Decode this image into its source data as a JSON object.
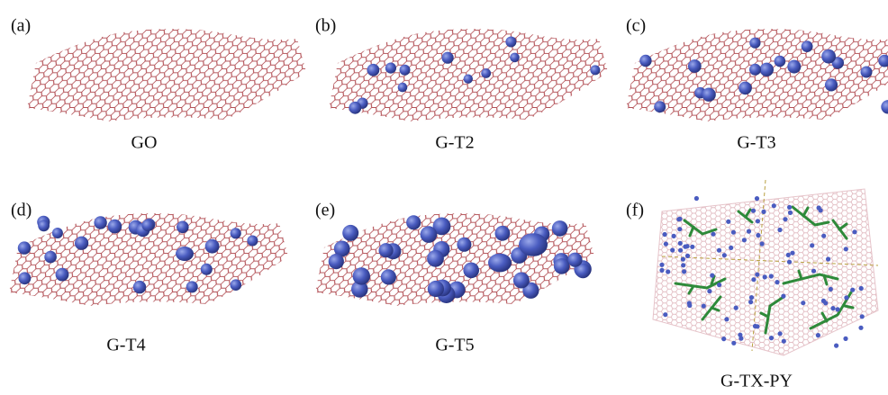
{
  "panels": [
    {
      "label": "(a)",
      "caption": "GO"
    },
    {
      "label": "(b)",
      "caption": "G-T2"
    },
    {
      "label": "(c)",
      "caption": "G-T3"
    },
    {
      "label": "(d)",
      "caption": "G-T4"
    },
    {
      "label": "(e)",
      "caption": "G-T5"
    },
    {
      "label": "(f)",
      "caption": "G-TX-PY"
    }
  ]
}
